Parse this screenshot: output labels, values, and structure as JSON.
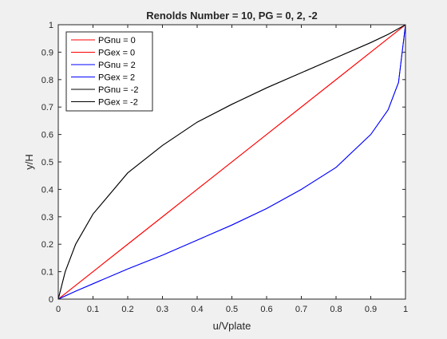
{
  "chart_data": {
    "type": "line",
    "title": "Renolds Number = 10, PG = 0, 2, -2",
    "xlabel": "u/Vplate",
    "ylabel": "y/H",
    "xlim": [
      0,
      1
    ],
    "ylim": [
      0,
      1
    ],
    "xticks": [
      0,
      0.1,
      0.2,
      0.3,
      0.4,
      0.5,
      0.6,
      0.7,
      0.8,
      0.9,
      1
    ],
    "yticks": [
      0,
      0.1,
      0.2,
      0.3,
      0.4,
      0.5,
      0.6,
      0.7,
      0.8,
      0.9,
      1
    ],
    "xtick_labels": [
      "0",
      "0.1",
      "0.2",
      "0.3",
      "0.4",
      "0.5",
      "0.6",
      "0.7",
      "0.8",
      "0.9",
      "1"
    ],
    "ytick_labels": [
      "0",
      "0.1",
      "0.2",
      "0.3",
      "0.4",
      "0.5",
      "0.6",
      "0.7",
      "0.8",
      "0.9",
      "1"
    ],
    "grid": false,
    "legend_position": "top-left",
    "series": [
      {
        "name": "PGnu = 0",
        "color": "#ff0000",
        "x": [
          0,
          0.1,
          0.2,
          0.3,
          0.4,
          0.5,
          0.6,
          0.7,
          0.8,
          0.9,
          1
        ],
        "y": [
          0,
          0.1,
          0.2,
          0.3,
          0.4,
          0.5,
          0.6,
          0.7,
          0.8,
          0.9,
          1
        ]
      },
      {
        "name": "PGex = 0",
        "color": "#ff0000",
        "x": [
          0,
          0.1,
          0.2,
          0.3,
          0.4,
          0.5,
          0.6,
          0.7,
          0.8,
          0.9,
          1
        ],
        "y": [
          0,
          0.1,
          0.2,
          0.3,
          0.4,
          0.5,
          0.6,
          0.7,
          0.8,
          0.9,
          1
        ]
      },
      {
        "name": "PGnu = 2",
        "color": "#0000ff",
        "x": [
          0,
          0.05,
          0.1,
          0.2,
          0.3,
          0.4,
          0.5,
          0.6,
          0.7,
          0.8,
          0.9,
          0.95,
          0.98,
          1
        ],
        "y": [
          0,
          0.029,
          0.056,
          0.11,
          0.16,
          0.215,
          0.27,
          0.33,
          0.4,
          0.48,
          0.6,
          0.69,
          0.79,
          1
        ]
      },
      {
        "name": "PGex = 2",
        "color": "#0000ff",
        "x": [
          0,
          0.05,
          0.1,
          0.2,
          0.3,
          0.4,
          0.5,
          0.6,
          0.7,
          0.8,
          0.9,
          0.95,
          0.98,
          1
        ],
        "y": [
          0,
          0.029,
          0.056,
          0.11,
          0.16,
          0.215,
          0.27,
          0.33,
          0.4,
          0.48,
          0.6,
          0.69,
          0.79,
          1
        ]
      },
      {
        "name": "PGnu = -2",
        "color": "#000000",
        "x": [
          0,
          0.02,
          0.05,
          0.1,
          0.2,
          0.3,
          0.4,
          0.5,
          0.6,
          0.7,
          0.8,
          0.9,
          0.95,
          1
        ],
        "y": [
          0,
          0.1,
          0.2,
          0.31,
          0.46,
          0.56,
          0.645,
          0.71,
          0.77,
          0.825,
          0.88,
          0.935,
          0.965,
          1
        ]
      },
      {
        "name": "PGex = -2",
        "color": "#000000",
        "x": [
          0,
          0.02,
          0.05,
          0.1,
          0.2,
          0.3,
          0.4,
          0.5,
          0.6,
          0.7,
          0.8,
          0.9,
          0.95,
          1
        ],
        "y": [
          0,
          0.1,
          0.2,
          0.31,
          0.46,
          0.56,
          0.645,
          0.71,
          0.77,
          0.825,
          0.88,
          0.935,
          0.965,
          1
        ]
      }
    ]
  }
}
